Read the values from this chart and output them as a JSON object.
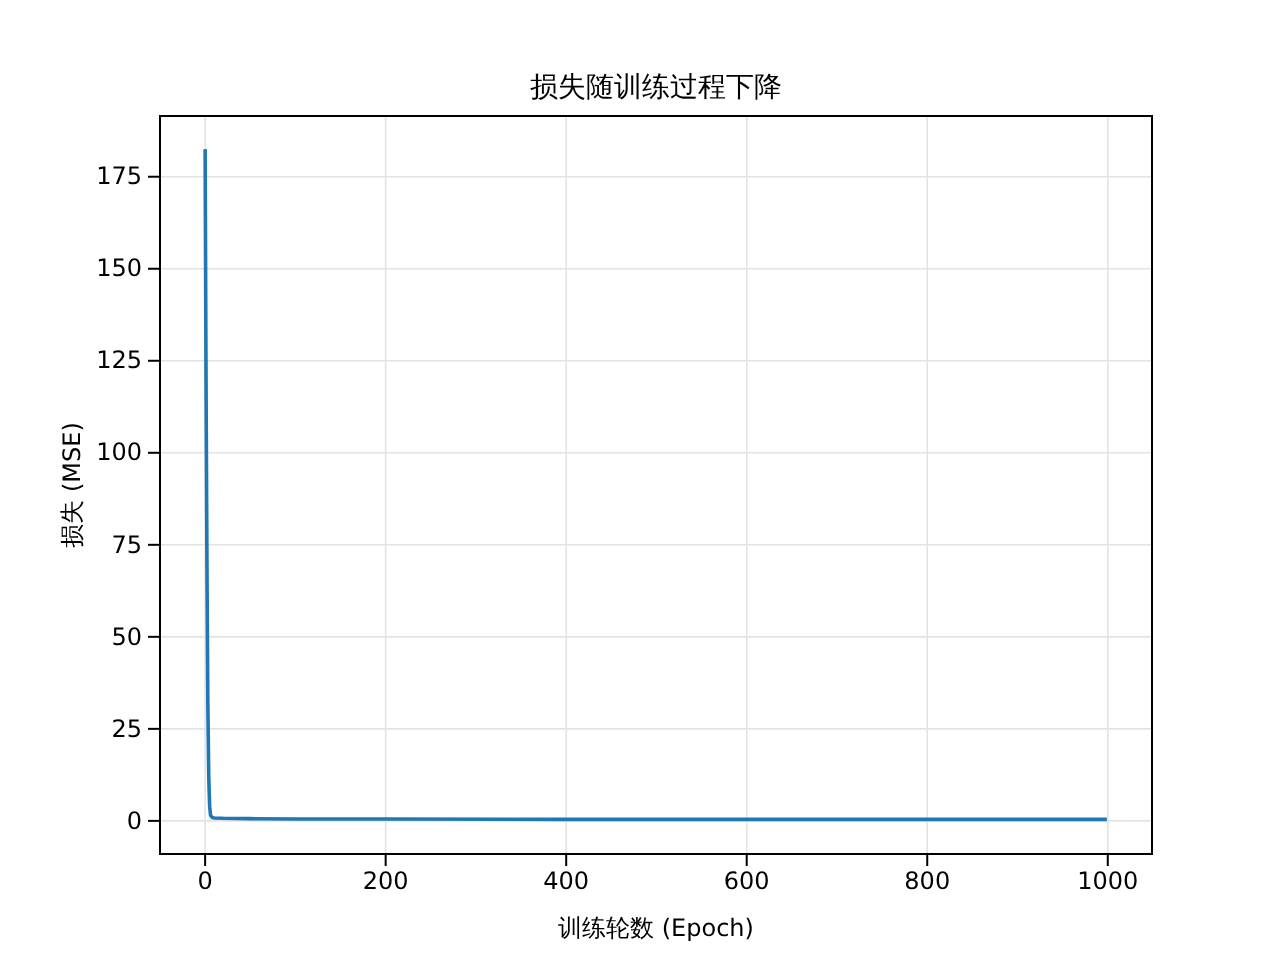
{
  "chart_data": {
    "type": "line",
    "title": "损失随训练过程下降",
    "xlabel": "训练轮数 (Epoch)",
    "ylabel": "损失 (MSE)",
    "x": [
      0,
      1,
      2,
      3,
      4,
      5,
      6,
      8,
      10,
      20,
      50,
      100,
      200,
      400,
      600,
      800,
      999
    ],
    "series": [
      {
        "color": "#1f77b4",
        "values": [
          182.5,
          120,
          70,
          32,
          12,
          4,
          1.5,
          0.9,
          0.8,
          0.7,
          0.6,
          0.5,
          0.5,
          0.4,
          0.4,
          0.4,
          0.4
        ]
      }
    ],
    "xlim": [
      -50,
      1049
    ],
    "ylim": [
      -9,
      191.5
    ],
    "xticks": [
      0,
      200,
      400,
      600,
      800,
      1000
    ],
    "yticks": [
      0,
      25,
      50,
      75,
      100,
      125,
      150,
      175
    ],
    "grid": true,
    "line_style": "solid",
    "marker": "none"
  }
}
